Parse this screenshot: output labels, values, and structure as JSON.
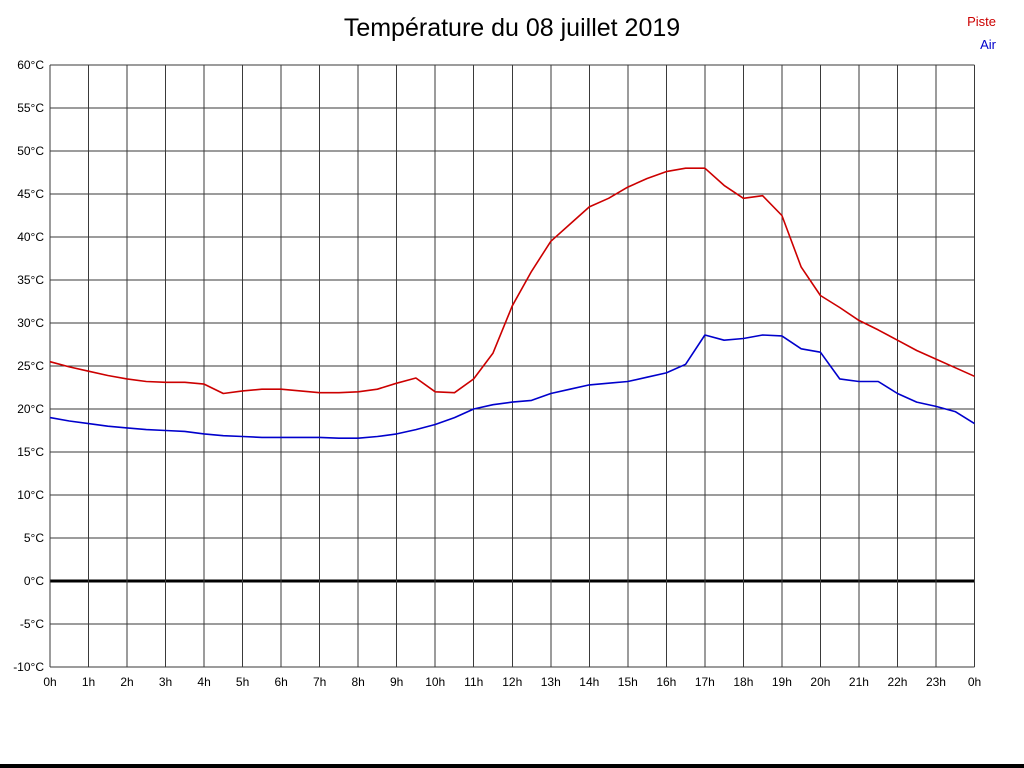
{
  "page": {
    "title": "Température du 08 juillet 2019"
  },
  "legend": [
    {
      "label": "Piste",
      "color": "#cc0000"
    },
    {
      "label": "Air",
      "color": "#0000cc"
    }
  ],
  "chart_data": {
    "type": "line",
    "title": "Température du 08 juillet 2019",
    "xlabel": "",
    "ylabel": "",
    "xlim": [
      0,
      24
    ],
    "ylim": [
      -10,
      60
    ],
    "y_step": 5,
    "x_step_hours": 0.5,
    "grid": true,
    "grid_color": "#3a3a3a",
    "zero_line": {
      "value": 0,
      "color": "#000000",
      "width": 3
    },
    "legend_position": "top-right",
    "x_tick_labels": [
      "0h",
      "1h",
      "2h",
      "3h",
      "4h",
      "5h",
      "6h",
      "7h",
      "8h",
      "9h",
      "10h",
      "11h",
      "12h",
      "13h",
      "14h",
      "15h",
      "16h",
      "17h",
      "18h",
      "19h",
      "20h",
      "21h",
      "22h",
      "23h",
      "0h"
    ],
    "y_tick_labels": [
      "60°C",
      "55°C",
      "50°C",
      "45°C",
      "40°C",
      "35°C",
      "30°C",
      "25°C",
      "20°C",
      "15°C",
      "10°C",
      "5°C",
      "0°C",
      "-5°C",
      "-10°C"
    ],
    "series": [
      {
        "name": "Piste",
        "color": "#cc0000",
        "values": [
          25.5,
          24.9,
          24.4,
          23.9,
          23.5,
          23.2,
          23.1,
          23.1,
          22.9,
          21.8,
          22.1,
          22.3,
          22.3,
          22.1,
          21.9,
          21.9,
          22.0,
          22.3,
          23.0,
          23.6,
          22.0,
          21.9,
          23.5,
          26.5,
          32.0,
          36.0,
          39.5,
          41.5,
          43.5,
          44.5,
          45.8,
          46.8,
          47.6,
          48.0,
          48.0,
          46.0,
          44.5,
          44.8,
          42.5,
          36.5,
          33.2,
          31.8,
          30.3,
          29.2,
          28.0,
          26.8,
          25.8,
          24.8,
          23.8
        ]
      },
      {
        "name": "Air",
        "color": "#0000cc",
        "values": [
          19.0,
          18.6,
          18.3,
          18.0,
          17.8,
          17.6,
          17.5,
          17.4,
          17.1,
          16.9,
          16.8,
          16.7,
          16.7,
          16.7,
          16.7,
          16.6,
          16.6,
          16.8,
          17.1,
          17.6,
          18.2,
          19.0,
          20.0,
          20.5,
          20.8,
          21.0,
          21.8,
          22.3,
          22.8,
          23.0,
          23.2,
          23.7,
          24.2,
          25.2,
          28.6,
          28.0,
          28.2,
          28.6,
          28.5,
          27.0,
          26.6,
          23.5,
          23.2,
          23.2,
          21.8,
          20.8,
          20.3,
          19.7,
          18.3
        ]
      }
    ]
  }
}
